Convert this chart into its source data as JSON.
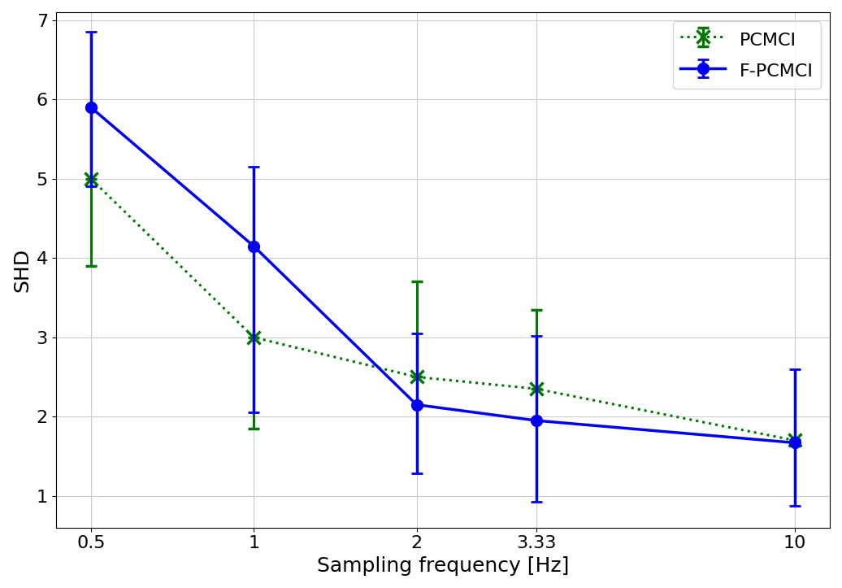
{
  "x_labels": [
    "0.5",
    "1",
    "2",
    "3.33",
    "10"
  ],
  "x_values": [
    0.5,
    1,
    2,
    3.33,
    10
  ],
  "pcmci_y": [
    5.0,
    3.0,
    2.5,
    2.35,
    1.7
  ],
  "pcmci_err_upper": [
    5.0,
    3.0,
    3.7,
    3.35,
    1.7
  ],
  "pcmci_err_lower": [
    3.9,
    1.85,
    2.5,
    2.35,
    1.7
  ],
  "fpcmci_y": [
    5.9,
    4.15,
    2.15,
    1.95,
    1.67
  ],
  "fpcmci_err_upper": [
    6.85,
    5.15,
    3.05,
    3.02,
    2.6
  ],
  "fpcmci_err_lower": [
    4.9,
    2.05,
    1.28,
    0.93,
    0.87
  ],
  "pcmci_color": "#007700",
  "fpcmci_color": "#0000ee",
  "ylabel": "SHD",
  "xlabel": "Sampling frequency [Hz]",
  "ylim": [
    0.6,
    7.1
  ],
  "yticks": [
    1,
    2,
    3,
    4,
    5,
    6,
    7
  ],
  "legend_labels": [
    "PCMCI",
    "F-PCMCI"
  ],
  "grid_color": "#cccccc",
  "grid_linewidth": 0.8
}
